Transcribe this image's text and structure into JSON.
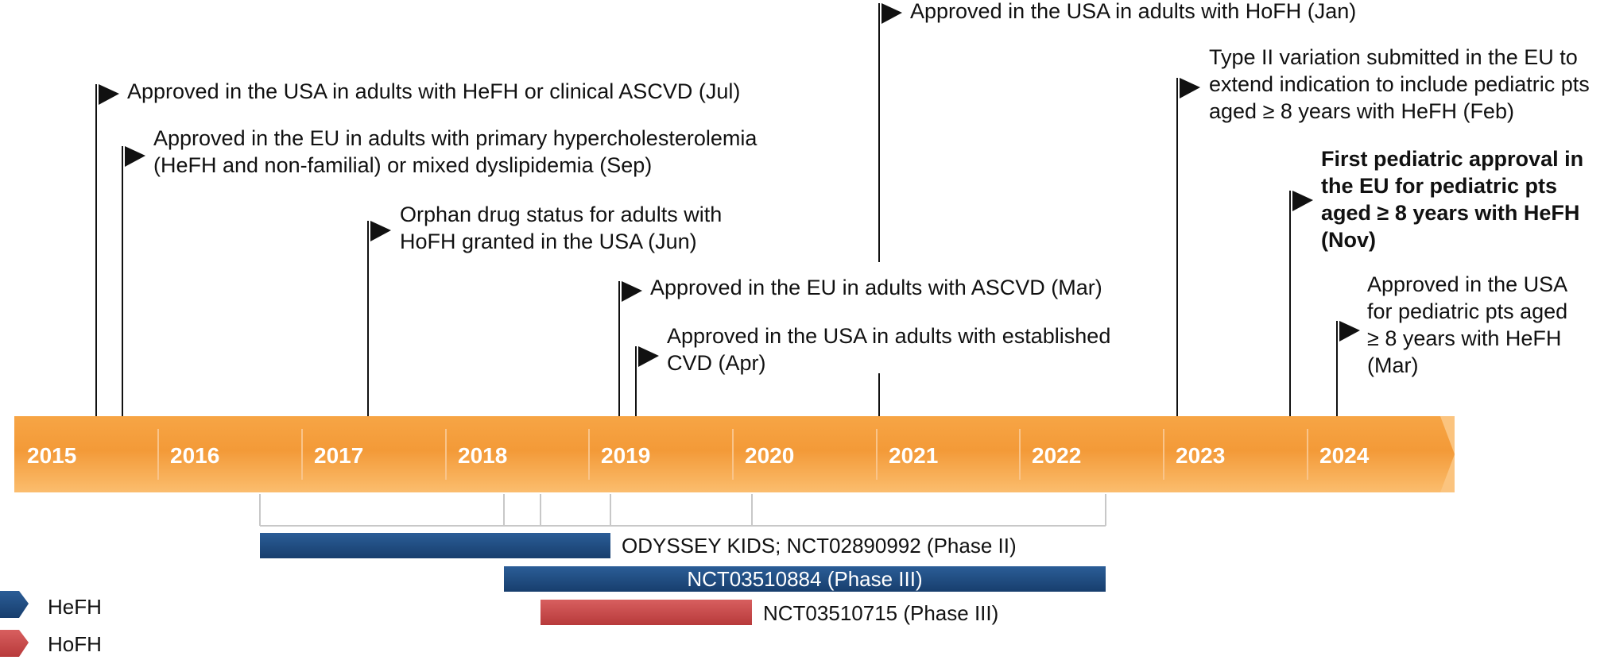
{
  "years": [
    "2015",
    "2016",
    "2017",
    "2018",
    "2019",
    "2020",
    "2021",
    "2022",
    "2023",
    "2024"
  ],
  "colors": {
    "timeline_dark": "#f08a2e",
    "timeline_light": "#fbbd6e",
    "hefh": "#1f4e85",
    "hofh": "#c9494a",
    "line": "#111111",
    "bracket": "#c8c8c8"
  },
  "events": [
    {
      "lines": [
        "Approved in the USA in adults with HeFH or clinical ASCVD (Jul)"
      ],
      "bold": false
    },
    {
      "lines": [
        "Approved in the EU in adults with primary hypercholesterolemia",
        "(HeFH and non-familial) or mixed dyslipidemia (Sep)"
      ],
      "bold": false
    },
    {
      "lines": [
        "Orphan drug status for adults with",
        "HoFH granted in the USA (Jun)"
      ],
      "bold": false
    },
    {
      "lines": [
        "Approved in the EU in adults with ASCVD (Mar)"
      ],
      "bold": false
    },
    {
      "lines": [
        "Approved in the USA in adults with established",
        "CVD (Apr)"
      ],
      "bold": false
    },
    {
      "lines": [
        "Approved in the USA in adults with HoFH (Jan)"
      ],
      "bold": false
    },
    {
      "lines": [
        "Type II variation submitted in the EU to",
        "extend indication to include pediatric pts",
        "aged ≥ 8 years with HeFH (Feb)"
      ],
      "bold": false
    },
    {
      "lines": [
        "First pediatric approval in",
        "the EU for pediatric pts",
        "aged ≥ 8 years with HeFH",
        "(Nov)"
      ],
      "bold": true
    },
    {
      "lines": [
        "Approved in the USA",
        "for pediatric pts aged",
        "≥ 8 years with HeFH",
        "(Mar)"
      ],
      "bold": false
    }
  ],
  "trials": [
    {
      "label": "ODYSSEY KIDS; NCT02890992 (Phase II)",
      "type": "HeFH"
    },
    {
      "label": "NCT03510884 (Phase III)",
      "type": "HeFH"
    },
    {
      "label": "NCT03510715 (Phase III)",
      "type": "HoFH"
    }
  ],
  "legend": [
    {
      "label": "HeFH",
      "color": "#1f4e85"
    },
    {
      "label": "HoFH",
      "color": "#c9494a"
    }
  ]
}
